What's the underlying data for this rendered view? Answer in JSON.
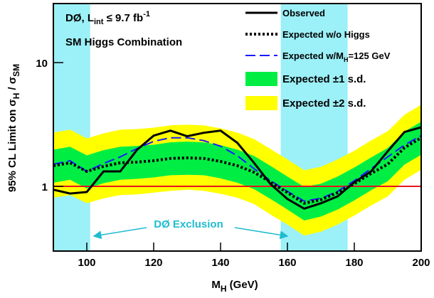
{
  "chart_data": {
    "type": "line",
    "log_y": true,
    "annotations": {
      "experiment": "DØ, L",
      "lumi_sub": "int",
      "lumi_rest": " ≤ 9.7 fb",
      "lumi_sup": "-1",
      "subtitle": "SM Higgs Combination",
      "exclusion": "DØ Exclusion"
    },
    "x_label": {
      "main": "M",
      "sub": "H",
      "rest": " (GeV)"
    },
    "y_label": {
      "main": "95% CL Limit on σ",
      "sub1": "H",
      "mid": " / σ",
      "sub2": "SM"
    },
    "x": [
      90,
      95,
      100,
      105,
      110,
      115,
      120,
      125,
      130,
      135,
      140,
      145,
      150,
      155,
      160,
      165,
      170,
      175,
      180,
      185,
      190,
      195,
      200
    ],
    "xlim": [
      90,
      200
    ],
    "xticks": [
      100,
      120,
      140,
      160,
      180,
      200
    ],
    "ylim": [
      0.3,
      30
    ],
    "yticks": [
      1,
      10
    ],
    "reference_line": {
      "value": 1,
      "color": "#e8141e"
    },
    "excluded_regions": [
      {
        "range": [
          90,
          101
        ],
        "color": "#9cf0f7"
      },
      {
        "range": [
          158,
          178
        ],
        "color": "#9cf0f7"
      }
    ],
    "bands": [
      {
        "name": "Expected ±2 s.d.",
        "color": "#ffff00",
        "upper": [
          2.72,
          2.87,
          2.44,
          2.68,
          2.87,
          2.9,
          2.98,
          3.11,
          3.15,
          3.11,
          2.94,
          2.72,
          2.41,
          2.0,
          1.65,
          1.35,
          1.44,
          1.65,
          1.94,
          2.35,
          2.79,
          3.79,
          4.57
        ],
        "lower": [
          0.81,
          0.85,
          0.73,
          0.8,
          0.85,
          0.86,
          0.89,
          0.92,
          0.94,
          0.92,
          0.87,
          0.81,
          0.72,
          0.59,
          0.49,
          0.4,
          0.43,
          0.49,
          0.58,
          0.7,
          0.83,
          1.13,
          1.36
        ]
      },
      {
        "name": "Expected ±1 s.d.",
        "color": "#00ee44",
        "upper": [
          1.98,
          2.09,
          1.78,
          1.96,
          2.09,
          2.12,
          2.17,
          2.27,
          2.3,
          2.27,
          2.15,
          1.98,
          1.76,
          1.46,
          1.2,
          0.99,
          1.05,
          1.2,
          1.42,
          1.71,
          2.04,
          2.77,
          3.33
        ],
        "lower": [
          1.07,
          1.13,
          0.96,
          1.06,
          1.13,
          1.15,
          1.18,
          1.23,
          1.24,
          1.23,
          1.16,
          1.07,
          0.95,
          0.79,
          0.65,
          0.53,
          0.57,
          0.65,
          0.77,
          0.93,
          1.1,
          1.5,
          1.8
        ]
      }
    ],
    "series": [
      {
        "name": "Observed",
        "color": "#000000",
        "style": "solid",
        "values": [
          0.94,
          0.875,
          0.9,
          1.32,
          1.32,
          1.97,
          2.57,
          2.82,
          2.54,
          2.71,
          2.82,
          2.25,
          1.55,
          1.04,
          0.79,
          0.66,
          0.73,
          0.83,
          1.08,
          1.32,
          1.92,
          2.75,
          3.0
        ]
      },
      {
        "name": "Expected w/o Higgs",
        "color": "#000000",
        "style": "dotted",
        "values": [
          1.47,
          1.55,
          1.32,
          1.45,
          1.55,
          1.57,
          1.61,
          1.68,
          1.7,
          1.68,
          1.59,
          1.47,
          1.3,
          1.08,
          0.89,
          0.73,
          0.78,
          0.89,
          1.05,
          1.27,
          1.51,
          2.05,
          2.47
        ]
      },
      {
        "name": "Expected w/M",
        "name_sub": "H",
        "name_rest": "=125 GeV",
        "color": "#1a1aff",
        "style": "dashed",
        "values": [
          1.51,
          1.61,
          1.32,
          1.53,
          1.73,
          2.02,
          2.31,
          2.47,
          2.47,
          2.34,
          2.11,
          1.77,
          1.39,
          1.11,
          0.91,
          0.76,
          0.8,
          0.91,
          1.11,
          1.39,
          1.73,
          2.16,
          2.57
        ]
      }
    ]
  }
}
